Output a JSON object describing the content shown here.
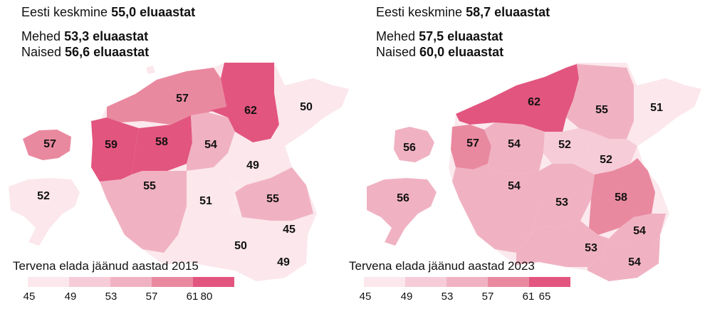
{
  "colors": {
    "c45": "#fbe7ec",
    "c49": "#f6ccd8",
    "c53": "#f0b2c3",
    "c57": "#e9899f",
    "c61": "#e2557e",
    "bg_land": "#fbe9ee"
  },
  "panels": [
    {
      "average_prefix": "Eesti keskmine",
      "average_value": "55,0 eluaastat",
      "men_prefix": "Mehed",
      "men_value": "53,3 eluaastat",
      "women_prefix": "Naised",
      "women_value": "56,6 eluaastat",
      "legend_title": "Tervena elada jäänud aastad 2015",
      "legend_ticks": [
        "45",
        "49",
        "53",
        "57",
        "61",
        "80"
      ],
      "regions": [
        {
          "name": "Harju",
          "value": "62"
        },
        {
          "name": "Ida-Viru",
          "value": "50"
        },
        {
          "name": "Lääne-Viru",
          "value": "57"
        },
        {
          "name": "Läänemaa-north",
          "value": "59"
        },
        {
          "name": "Rapla",
          "value": "58"
        },
        {
          "name": "Järva",
          "value": "54"
        },
        {
          "name": "Hiiu",
          "value": "57"
        },
        {
          "name": "Jõgeva",
          "value": "49"
        },
        {
          "name": "Saare",
          "value": "52"
        },
        {
          "name": "Pärnu",
          "value": "55"
        },
        {
          "name": "Viljandi",
          "value": "51"
        },
        {
          "name": "Tartu",
          "value": "55"
        },
        {
          "name": "Põlva",
          "value": "45"
        },
        {
          "name": "Valga",
          "value": "50"
        },
        {
          "name": "Võru",
          "value": "49"
        }
      ]
    },
    {
      "average_prefix": "Eesti keskmine",
      "average_value": "58,7 eluaastat",
      "men_prefix": "Mehed",
      "men_value": "57,5 eluaastat",
      "women_prefix": "Naised",
      "women_value": "60,0 eluaastat",
      "legend_title": "Tervena elada jäänud aastad 2023",
      "legend_ticks": [
        "45",
        "49",
        "53",
        "57",
        "61",
        "65"
      ],
      "regions": [
        {
          "name": "Harju",
          "value": "62"
        },
        {
          "name": "Lääne-Viru",
          "value": "55"
        },
        {
          "name": "Ida-Viru",
          "value": "51"
        },
        {
          "name": "Hiiu",
          "value": "56"
        },
        {
          "name": "Lääne",
          "value": "57"
        },
        {
          "name": "Rapla",
          "value": "54"
        },
        {
          "name": "Järva",
          "value": "52"
        },
        {
          "name": "Jõgeva",
          "value": "52"
        },
        {
          "name": "Saare",
          "value": "56"
        },
        {
          "name": "Pärnu",
          "value": "54"
        },
        {
          "name": "Viljandi",
          "value": "53"
        },
        {
          "name": "Tartu",
          "value": "58"
        },
        {
          "name": "Põlva",
          "value": "54"
        },
        {
          "name": "Valga",
          "value": "53"
        },
        {
          "name": "Võru",
          "value": "54"
        }
      ]
    }
  ]
}
